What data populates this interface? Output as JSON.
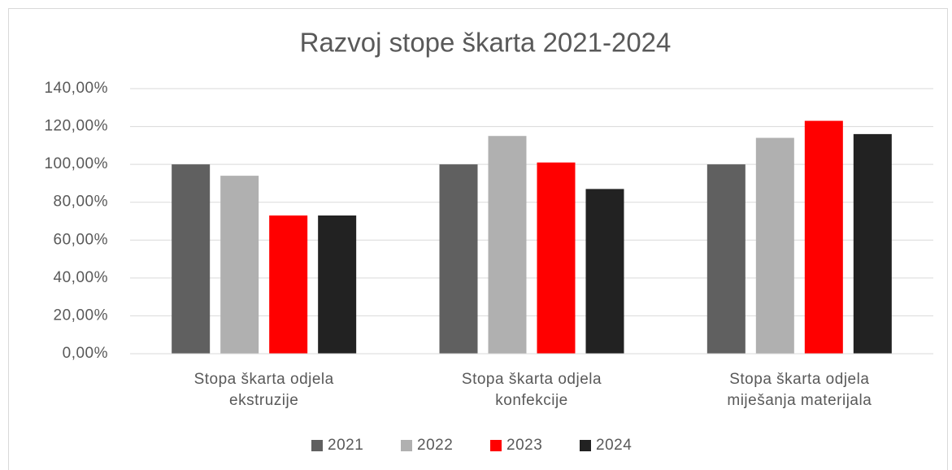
{
  "chart_data": {
    "type": "bar",
    "title": "Razvoj stope škarta 2021-2024",
    "categories": [
      "Stopa škarta odjela ekstruzije",
      "Stopa škarta odjela konfekcije",
      "Stopa škarta odjela miješanja materijala"
    ],
    "series": [
      {
        "name": "2021",
        "color": "#606060",
        "values": [
          100,
          100,
          100
        ]
      },
      {
        "name": "2022",
        "color": "#b0b0b0",
        "values": [
          94,
          115,
          114
        ]
      },
      {
        "name": "2023",
        "color": "#ff0000",
        "values": [
          73,
          101,
          123
        ]
      },
      {
        "name": "2024",
        "color": "#222222",
        "values": [
          73,
          87,
          116
        ]
      }
    ],
    "ylim": [
      0,
      140
    ],
    "yticks": [
      {
        "value": 0,
        "label": "0,00%"
      },
      {
        "value": 20,
        "label": "20,00%"
      },
      {
        "value": 40,
        "label": "40,00%"
      },
      {
        "value": 60,
        "label": "60,00%"
      },
      {
        "value": 80,
        "label": "80,00%"
      },
      {
        "value": 100,
        "label": "100,00%"
      },
      {
        "value": 120,
        "label": "120,00%"
      },
      {
        "value": 140,
        "label": "140,00%"
      }
    ],
    "grid": true,
    "legend": "bottom"
  }
}
